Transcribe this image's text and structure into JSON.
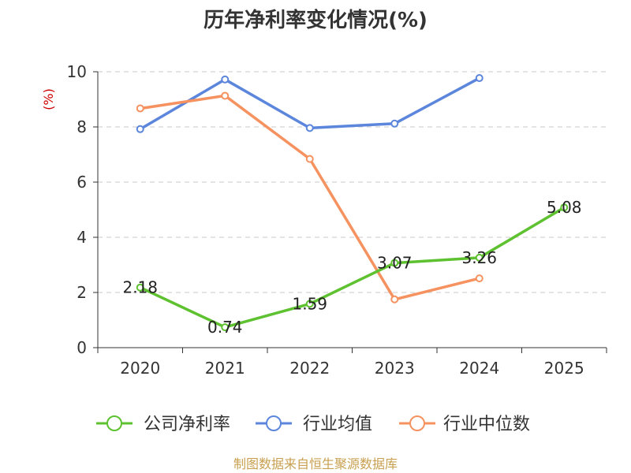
{
  "chart_data": {
    "type": "line",
    "title": "历年净利率变化情况(%)",
    "ylabel": "(%)",
    "xlabel": "",
    "categories": [
      "2020",
      "2021",
      "2022",
      "2023",
      "2024",
      "2025"
    ],
    "ylim": [
      0,
      10
    ],
    "yticks": [
      0,
      2,
      4,
      6,
      8,
      10
    ],
    "grid": true,
    "legend_position": "bottom",
    "series": [
      {
        "name": "公司净利率",
        "color": "#5ec130",
        "values": [
          2.18,
          0.74,
          1.59,
          3.07,
          3.26,
          5.08
        ],
        "labels": [
          "2.18",
          "0.74",
          "1.59",
          "3.07",
          "3.26",
          "5.08"
        ]
      },
      {
        "name": "行业均值",
        "color": "#5b86dc",
        "values": [
          7.92,
          9.72,
          7.96,
          8.12,
          9.77,
          null
        ]
      },
      {
        "name": "行业中位数",
        "color": "#f5925f",
        "values": [
          8.67,
          9.13,
          6.84,
          1.75,
          2.51,
          null
        ]
      }
    ]
  },
  "footer": {
    "source": "制图数据来自恒生聚源数据库"
  }
}
